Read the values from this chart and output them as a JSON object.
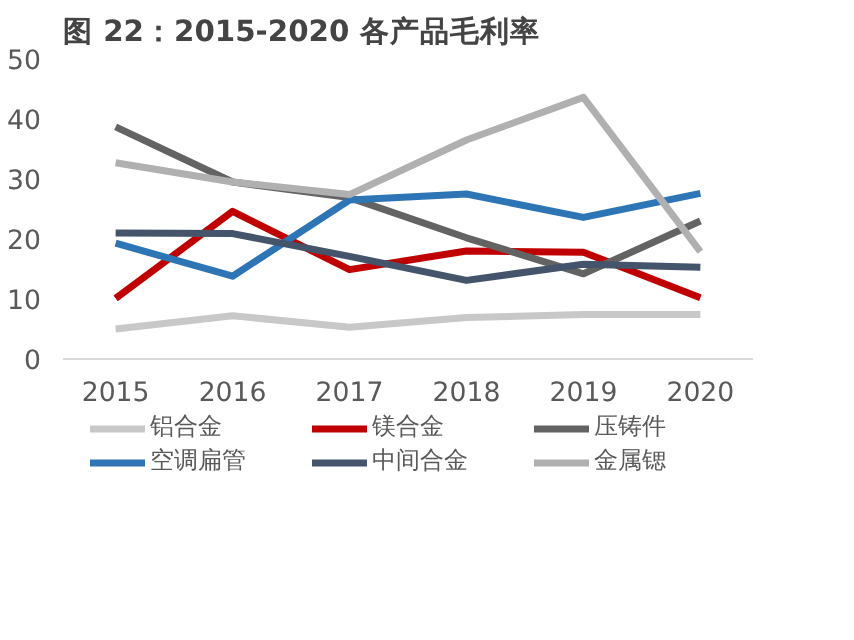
{
  "chart_data": {
    "type": "line",
    "title": "图 22：2015-2020 各产品毛利率",
    "categories": [
      "2015",
      "2016",
      "2017",
      "2018",
      "2019",
      "2020"
    ],
    "series": [
      {
        "name": "铝合金",
        "color": "#c8c8c8",
        "values": [
          5.0,
          7.2,
          5.3,
          6.9,
          7.4,
          7.4
        ]
      },
      {
        "name": "镁合金",
        "color": "#c00000",
        "values": [
          10.1,
          24.6,
          14.9,
          18.0,
          17.8,
          10.2
        ]
      },
      {
        "name": "压铸件",
        "color": "#636363",
        "values": [
          38.7,
          29.5,
          26.9,
          20.2,
          14.2,
          23.0
        ]
      },
      {
        "name": "空调扁管",
        "color": "#2e75b6",
        "values": [
          19.3,
          13.8,
          26.5,
          27.5,
          23.6,
          27.6
        ]
      },
      {
        "name": "中间合金",
        "color": "#44546a",
        "values": [
          21.0,
          20.9,
          17.1,
          13.1,
          15.8,
          15.3
        ]
      },
      {
        "name": "金属锶",
        "color": "#b0b0b0",
        "values": [
          32.7,
          29.5,
          27.4,
          36.5,
          43.6,
          17.9
        ]
      }
    ],
    "ylim": [
      0,
      50
    ],
    "yticks": [
      0,
      10,
      20,
      30,
      40,
      50
    ],
    "grid": false,
    "legend": "bottom",
    "marker": "none",
    "line_style": "solid"
  }
}
